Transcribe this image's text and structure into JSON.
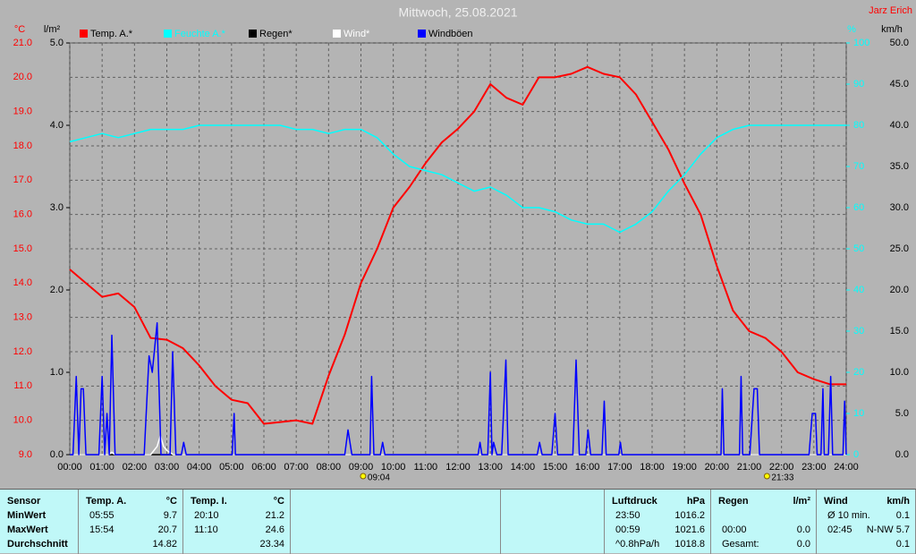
{
  "chart_data": {
    "type": "line",
    "title": "Mittwoch, 25.08.2021",
    "author": "Jarz Erich",
    "ylabel": "°C",
    "y2label": "l/m²",
    "y3label": "%",
    "y4label": "km/h",
    "xlim": [
      0,
      24
    ],
    "xticks": [
      {
        "value": 0,
        "label": "00:00"
      },
      {
        "value": 1,
        "label": "01:00"
      },
      {
        "value": 2,
        "label": "02:00"
      },
      {
        "value": 3,
        "label": "03:00"
      },
      {
        "value": 4,
        "label": "04:00"
      },
      {
        "value": 5,
        "label": "05:00"
      },
      {
        "value": 6,
        "label": "06:00"
      },
      {
        "value": 7,
        "label": "07:00"
      },
      {
        "value": 8,
        "label": "08:00"
      },
      {
        "value": 9,
        "label": "09:00"
      },
      {
        "value": 10,
        "label": "10:00"
      },
      {
        "value": 11,
        "label": "11:00"
      },
      {
        "value": 12,
        "label": "12:00"
      },
      {
        "value": 13,
        "label": "13:00"
      },
      {
        "value": 14,
        "label": "14:00"
      },
      {
        "value": 15,
        "label": "15:00"
      },
      {
        "value": 16,
        "label": "16:00"
      },
      {
        "value": 17,
        "label": "17:00"
      },
      {
        "value": 18,
        "label": "18:00"
      },
      {
        "value": 19,
        "label": "19:00"
      },
      {
        "value": 20,
        "label": "20:00"
      },
      {
        "value": 21,
        "label": "21:00"
      },
      {
        "value": 22,
        "label": "22:00"
      },
      {
        "value": 23,
        "label": "23:00"
      },
      {
        "value": 24,
        "label": "24:00"
      }
    ],
    "ylim": [
      9,
      21
    ],
    "yticks": [
      {
        "value": 9,
        "label": "9.0"
      },
      {
        "value": 10,
        "label": "10.0"
      },
      {
        "value": 11,
        "label": "11.0"
      },
      {
        "value": 12,
        "label": "12.0"
      },
      {
        "value": 13,
        "label": "13.0"
      },
      {
        "value": 14,
        "label": "14.0"
      },
      {
        "value": 15,
        "label": "15.0"
      },
      {
        "value": 16,
        "label": "16.0"
      },
      {
        "value": 17,
        "label": "17.0"
      },
      {
        "value": 18,
        "label": "18.0"
      },
      {
        "value": 19,
        "label": "19.0"
      },
      {
        "value": 20,
        "label": "20.0"
      },
      {
        "value": 21,
        "label": "21.0"
      }
    ],
    "y2lim": [
      0,
      5
    ],
    "y2ticks": [
      {
        "value": 0,
        "label": "0.0"
      },
      {
        "value": 1,
        "label": "1.0"
      },
      {
        "value": 2,
        "label": "2.0"
      },
      {
        "value": 3,
        "label": "3.0"
      },
      {
        "value": 4,
        "label": "4.0"
      },
      {
        "value": 5,
        "label": "5.0"
      }
    ],
    "y3lim": [
      0,
      100
    ],
    "y3ticks": [
      0,
      10,
      20,
      30,
      40,
      50,
      60,
      70,
      80,
      90,
      100
    ],
    "y4lim": [
      0,
      50
    ],
    "y4ticks": [
      {
        "value": 0,
        "label": "0.0"
      },
      {
        "value": 5,
        "label": "5.0"
      },
      {
        "value": 10,
        "label": "10.0"
      },
      {
        "value": 15,
        "label": "15.0"
      },
      {
        "value": 20,
        "label": "20.0"
      },
      {
        "value": 25,
        "label": "25.0"
      },
      {
        "value": 30,
        "label": "30.0"
      },
      {
        "value": 35,
        "label": "35.0"
      },
      {
        "value": 40,
        "label": "40.0"
      },
      {
        "value": 45,
        "label": "45.0"
      },
      {
        "value": 50,
        "label": "50.0"
      }
    ],
    "grid": true,
    "annotations": [
      {
        "value": 9.0667,
        "label": "09:04"
      },
      {
        "value": 21.55,
        "label": "21:33"
      }
    ],
    "series": [
      {
        "name": "Temp. A.*",
        "color": "#ff0000",
        "axis": "y",
        "x": [
          0,
          0.5,
          1,
          1.5,
          2,
          2.5,
          3,
          3.5,
          4,
          4.5,
          5,
          5.5,
          6,
          6.5,
          7,
          7.5,
          8,
          8.5,
          9,
          9.5,
          10,
          10.5,
          11,
          11.5,
          12,
          12.5,
          13,
          13.5,
          14,
          14.5,
          15,
          15.5,
          16,
          16.5,
          17,
          17.5,
          18,
          18.5,
          19,
          19.5,
          20,
          20.5,
          21,
          21.5,
          22,
          22.5,
          23,
          23.5,
          24
        ],
        "values": [
          14.4,
          14.0,
          13.6,
          13.7,
          13.3,
          12.4,
          12.35,
          12.1,
          11.6,
          11.0,
          10.6,
          10.5,
          9.9,
          9.95,
          10.0,
          9.9,
          11.3,
          12.5,
          14.0,
          15.0,
          16.2,
          16.8,
          17.5,
          18.1,
          18.5,
          19.0,
          19.8,
          19.4,
          19.2,
          20.0,
          20.0,
          20.1,
          20.3,
          20.1,
          20.0,
          19.5,
          18.7,
          17.9,
          16.9,
          16.0,
          14.5,
          13.2,
          12.6,
          12.4,
          12.0,
          11.4,
          11.2,
          11.05,
          11.05
        ]
      },
      {
        "name": "Feuchte A.*",
        "color": "#00ffff",
        "axis": "y3",
        "x": [
          0,
          0.5,
          1,
          1.5,
          2,
          2.5,
          3,
          3.5,
          4,
          4.5,
          5,
          5.5,
          6,
          6.5,
          7,
          7.5,
          8,
          8.5,
          9,
          9.5,
          10,
          10.5,
          11,
          11.5,
          12,
          12.5,
          13,
          13.5,
          14,
          14.5,
          15,
          15.5,
          16,
          16.5,
          17,
          17.5,
          18,
          18.5,
          19,
          19.5,
          20,
          20.5,
          21,
          21.5,
          22,
          22.5,
          23,
          23.5,
          24
        ],
        "values": [
          76,
          77,
          78,
          77,
          78,
          79,
          79,
          79,
          80,
          80,
          80,
          80,
          80,
          80,
          79,
          79,
          78,
          79,
          79,
          77,
          73,
          70,
          69,
          68,
          66,
          64,
          65,
          63,
          60,
          60,
          59,
          57,
          56,
          56,
          54,
          56,
          59,
          64,
          68,
          73,
          77,
          79,
          80,
          80,
          80,
          80,
          80,
          80,
          80
        ]
      },
      {
        "name": "Regen*",
        "color": "#000000",
        "axis": "y2",
        "x": [
          0,
          24
        ],
        "values": [
          0,
          0
        ]
      },
      {
        "name": "Wind*",
        "color": "#ffffff",
        "axis": "y4",
        "x": [
          0,
          1.2,
          1.3,
          1.4,
          2.5,
          2.7,
          2.8,
          2.9,
          3.0,
          3.2,
          24
        ],
        "values": [
          0,
          0,
          0.3,
          0,
          0,
          1,
          2.3,
          1,
          0.5,
          0,
          0
        ]
      },
      {
        "name": "Windböen",
        "color": "#0000ff",
        "axis": "y4",
        "x": [
          0,
          0.1,
          0.2,
          0.28,
          0.35,
          0.42,
          0.5,
          0.9,
          1.0,
          1.08,
          1.15,
          1.22,
          1.3,
          1.4,
          2.3,
          2.45,
          2.55,
          2.7,
          2.82,
          3.1,
          3.18,
          3.28,
          3.45,
          3.52,
          3.6,
          5.02,
          5.08,
          5.12,
          8.5,
          8.6,
          8.72,
          9.28,
          9.33,
          9.4,
          9.6,
          9.67,
          9.74,
          12.62,
          12.68,
          12.74,
          12.92,
          13.0,
          13.05,
          13.1,
          13.2,
          13.35,
          13.48,
          13.55,
          14.45,
          14.52,
          14.6,
          14.9,
          15.0,
          15.08,
          15.55,
          15.65,
          15.75,
          15.95,
          16.02,
          16.1,
          16.45,
          16.52,
          16.58,
          16.97,
          17.02,
          17.07,
          20.13,
          20.17,
          20.22,
          20.7,
          20.75,
          20.8,
          21.02,
          21.15,
          21.25,
          21.32,
          22.85,
          22.95,
          23.05,
          23.1,
          23.22,
          23.28,
          23.32,
          23.45,
          23.52,
          23.58,
          23.9,
          23.95,
          24
        ],
        "values": [
          0,
          0,
          9.5,
          0,
          8,
          8,
          0,
          0,
          9.5,
          0,
          5,
          0,
          14.5,
          0,
          0,
          12,
          10,
          16,
          0,
          0,
          12.5,
          0,
          0,
          1.5,
          0,
          0,
          5,
          0,
          0,
          3,
          0,
          0,
          9.5,
          0,
          0,
          1.5,
          0,
          0,
          1.5,
          0,
          0,
          10,
          0,
          1.5,
          0,
          0,
          11.5,
          0,
          0,
          1.5,
          0,
          0,
          5,
          0,
          0,
          11.5,
          0,
          0,
          3,
          0,
          0,
          6.5,
          0,
          0,
          1.5,
          0,
          0,
          8,
          0,
          0,
          9.5,
          0,
          0,
          8,
          8,
          0,
          0,
          5,
          5,
          0,
          0,
          8,
          0,
          0,
          9.5,
          0,
          0,
          6.5,
          0
        ]
      }
    ]
  },
  "stats": {
    "row_labels": [
      "Sensor",
      "MinWert",
      "MaxWert",
      "Durchschnitt"
    ],
    "panels": [
      {
        "title": "Temp. A.",
        "unit": "°C",
        "rows": [
          {
            "left": "05:55",
            "right": "9.7"
          },
          {
            "left": "15:54",
            "right": "20.7"
          },
          {
            "right": "14.82"
          }
        ]
      },
      {
        "title": "Temp. I.",
        "unit": "°C",
        "rows": [
          {
            "left": "20:10",
            "right": "21.2"
          },
          {
            "left": "11:10",
            "right": "24.6"
          },
          {
            "right": "23.34"
          }
        ]
      },
      {
        "title": "Luftdruck",
        "unit": "hPa",
        "rows": [
          {
            "left": "23:50",
            "right": "1016.2"
          },
          {
            "left": "00:59",
            "right": "1021.6"
          },
          {
            "left": "^0.8hPa/h",
            "right": "1018.8"
          }
        ]
      },
      {
        "title": "Regen",
        "unit": "l/m²",
        "rows": [
          {},
          {
            "left": "00:00",
            "right": "0.0"
          },
          {
            "left": "Gesamt:",
            "right": "0.0"
          }
        ]
      },
      {
        "title": "Wind",
        "unit": "km/h",
        "rows": [
          {
            "left": "Ø 10 min.",
            "right": "0.1"
          },
          {
            "left": "02:45",
            "right": "N-NW 5.7"
          },
          {
            "right": "0.1"
          }
        ]
      }
    ]
  }
}
